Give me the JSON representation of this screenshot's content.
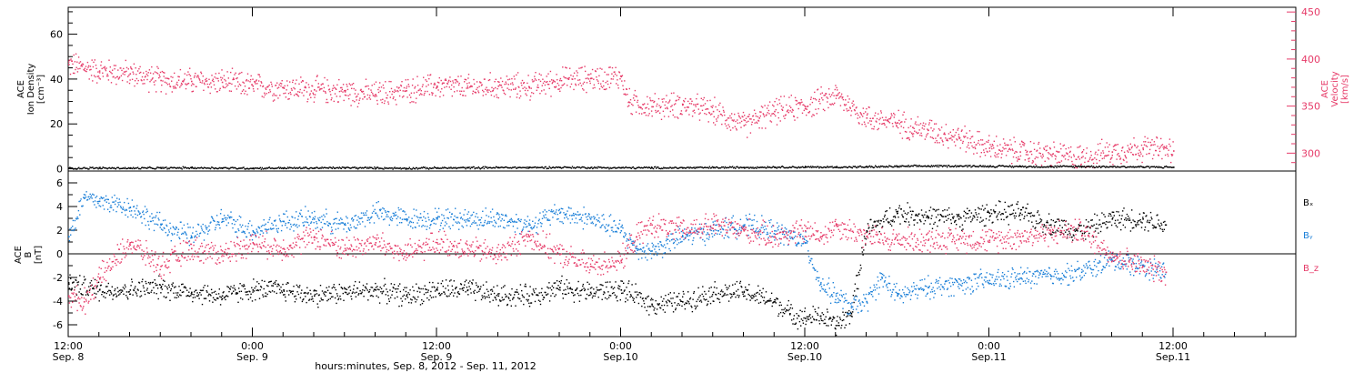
{
  "chart_data": [
    {
      "type": "scatter",
      "panel": "top",
      "left_axis": {
        "label_lines": [
          "ACE",
          "Ion Density",
          "[cm⁻³]"
        ],
        "ylim": [
          -1,
          72
        ],
        "ticks": [
          0,
          20,
          40,
          60
        ],
        "tick_labels": [
          "0",
          "20",
          "40",
          "60"
        ]
      },
      "right_axis": {
        "label_lines": [
          "ACE",
          "Velocity",
          "[km/s]"
        ],
        "ylim": [
          281,
          455
        ],
        "ticks": [
          300,
          350,
          400,
          450
        ],
        "tick_labels": [
          "300",
          "350",
          "400",
          "450"
        ],
        "color": "#e63a68"
      },
      "series": [
        {
          "axis": "left",
          "color": "#000000",
          "x": [
            0,
            2,
            4,
            6,
            8,
            10,
            12,
            14,
            16,
            18,
            20,
            22,
            24,
            26,
            28,
            30,
            32,
            34,
            36,
            38,
            40,
            42,
            44,
            46,
            48,
            50,
            52,
            54,
            56,
            58,
            60,
            62,
            64,
            66,
            68,
            70,
            72
          ],
          "y": [
            0.5,
            0.6,
            0.5,
            0.6,
            0.7,
            0.6,
            0.5,
            0.6,
            0.6,
            0.7,
            0.6,
            0.5,
            0.6,
            0.7,
            0.8,
            0.8,
            0.9,
            0.8,
            0.7,
            0.7,
            0.7,
            0.8,
            0.9,
            1.0,
            1.0,
            1.0,
            1.1,
            1.3,
            1.5,
            1.5,
            1.4,
            1.3,
            1.2,
            1.3,
            1.2,
            1.1,
            1.0
          ]
        },
        {
          "axis": "right",
          "color": "#e63a68",
          "x": [
            0,
            2,
            4,
            6,
            8,
            10,
            12,
            14,
            16,
            18,
            20,
            22,
            24,
            26,
            28,
            30,
            32,
            34,
            36,
            36.5,
            38,
            40,
            42,
            44,
            45,
            46,
            48,
            50,
            52,
            54,
            55,
            56,
            58,
            60,
            62,
            64,
            66,
            68,
            70,
            72
          ],
          "y": [
            395,
            388,
            385,
            378,
            377,
            376,
            372,
            370,
            368,
            366,
            363,
            367,
            372,
            370,
            372,
            371,
            378,
            380,
            382,
            355,
            350,
            352,
            345,
            330,
            338,
            345,
            350,
            362,
            338,
            333,
            328,
            325,
            318,
            306,
            302,
            299,
            296,
            302,
            306,
            303
          ]
        }
      ]
    },
    {
      "type": "scatter",
      "panel": "bottom",
      "left_axis": {
        "label_lines": [
          "ACE",
          "B",
          "[nT]"
        ],
        "ylim": [
          -7,
          7
        ],
        "ticks": [
          -6,
          -4,
          -2,
          0,
          2,
          4,
          6
        ],
        "tick_labels": [
          "-6",
          "-4",
          "-2",
          "0",
          "2",
          "4",
          "6"
        ]
      },
      "legend": [
        {
          "label": "Bₓ",
          "color": "#000000"
        },
        {
          "label": "Bᵧ",
          "color": "#1a7fd8"
        },
        {
          "label": "B_z",
          "color": "#e63a68"
        }
      ],
      "series": [
        {
          "name": "Bₓ",
          "color": "#000000",
          "x": [
            0,
            2,
            4,
            6,
            8,
            10,
            12,
            14,
            16,
            18,
            20,
            22,
            24,
            26,
            28,
            30,
            32,
            34,
            36,
            38,
            40,
            42,
            44,
            46,
            47,
            48,
            49,
            50,
            51,
            52,
            54,
            56,
            58,
            60,
            62,
            64,
            66,
            68,
            70,
            71.5
          ],
          "y": [
            -2.5,
            -3.0,
            -3.0,
            -2.8,
            -3.2,
            -3.5,
            -3.0,
            -3.0,
            -3.5,
            -3.2,
            -3.0,
            -3.5,
            -3.0,
            -3.0,
            -3.5,
            -3.5,
            -2.8,
            -3.2,
            -3.0,
            -4.2,
            -4.0,
            -3.2,
            -3.2,
            -4.0,
            -5.0,
            -5.4,
            -5.2,
            -6.0,
            -5.0,
            2.0,
            3.5,
            3.2,
            3.0,
            3.5,
            3.5,
            2.5,
            2.0,
            3.0,
            3.0,
            2.5
          ]
        },
        {
          "name": "Bᵧ",
          "color": "#1a7fd8",
          "x": [
            0,
            1,
            2,
            4,
            6,
            8,
            10,
            12,
            14,
            16,
            18,
            20,
            22,
            24,
            26,
            28,
            30,
            32,
            34,
            36,
            37,
            38,
            40,
            42,
            44,
            46,
            48,
            49,
            50,
            51,
            52,
            53,
            54,
            56,
            58,
            60,
            62,
            64,
            66,
            68,
            70,
            71.5
          ],
          "y": [
            1.5,
            4.8,
            4.5,
            4.0,
            2.5,
            1.5,
            3.0,
            2.0,
            2.8,
            3.0,
            2.5,
            3.5,
            3.0,
            3.0,
            3.0,
            3.0,
            2.5,
            3.5,
            3.0,
            2.0,
            0.5,
            0.3,
            1.5,
            2.0,
            2.5,
            2.0,
            1.0,
            -2.5,
            -3.5,
            -4.5,
            -4.0,
            -2.0,
            -3.5,
            -2.8,
            -2.5,
            -2.2,
            -2.0,
            -1.8,
            -1.5,
            -0.5,
            -1.0,
            -1.5
          ]
        },
        {
          "name": "B_z",
          "color": "#e63a68",
          "x": [
            0,
            1,
            2,
            4,
            6,
            8,
            10,
            12,
            14,
            16,
            18,
            20,
            22,
            24,
            26,
            28,
            30,
            32,
            34,
            36,
            37,
            38,
            40,
            42,
            44,
            46,
            48,
            49,
            50,
            52,
            54,
            56,
            58,
            60,
            62,
            64,
            66,
            68,
            70,
            71.5
          ],
          "y": [
            -3.5,
            -4.0,
            -2.0,
            1.0,
            -1.0,
            0.5,
            0.0,
            1.0,
            0.5,
            1.5,
            0.5,
            1.0,
            0.0,
            1.0,
            0.5,
            0.0,
            1.5,
            0.0,
            -1.0,
            -0.5,
            1.5,
            2.5,
            2.0,
            2.5,
            2.0,
            1.5,
            2.0,
            1.5,
            2.5,
            1.5,
            1.2,
            1.2,
            1.3,
            1.2,
            1.5,
            1.8,
            2.0,
            0.0,
            -1.0,
            -1.5
          ]
        }
      ]
    }
  ],
  "x_axis": {
    "xlim": [
      0,
      80
    ],
    "tick_values": [
      0,
      12,
      24,
      36,
      48,
      60,
      72
    ],
    "tick_labels": [
      {
        "time": "12:00",
        "date": "Sep. 8"
      },
      {
        "time": "0:00",
        "date": "Sep. 9"
      },
      {
        "time": "12:00",
        "date": "Sep. 9"
      },
      {
        "time": "0:00",
        "date": "Sep.10"
      },
      {
        "time": "12:00",
        "date": "Sep.10"
      },
      {
        "time": "0:00",
        "date": "Sep.11"
      },
      {
        "time": "12:00",
        "date": "Sep.11"
      }
    ],
    "title": "hours:minutes, Sep.  8, 2012 - Sep. 11, 2012"
  }
}
